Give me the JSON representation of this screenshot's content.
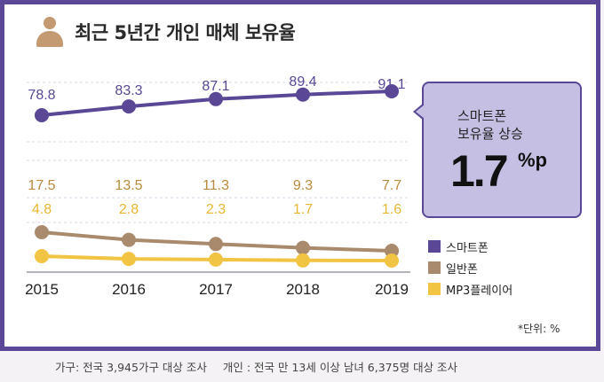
{
  "title": "최근 5년간 개인 매체 보유율",
  "callout": {
    "line1": "스마트폰",
    "line2": "보유율 상승",
    "value": "1.7",
    "unit": "%p"
  },
  "unit_note": "*단위: %",
  "footer": {
    "household": "가구: 전국 3,945가구 대상 조사",
    "individual": "개인 : 전국 만 13세 이상 남녀 6,375명 대상 조사"
  },
  "colors": {
    "smartphone": "#5a4896",
    "feature_phone": "#a98a6c",
    "mp3": "#f2c443",
    "frame": "#5a4896",
    "callout_bg": "#c5bfe3"
  },
  "chart_data": {
    "type": "line",
    "title": "최근 5년간 개인 매체 보유율",
    "x": [
      "2015",
      "2016",
      "2017",
      "2018",
      "2019"
    ],
    "unit": "%",
    "series": [
      {
        "name": "스마트폰",
        "values": [
          78.8,
          83.3,
          87.1,
          89.4,
          91.1
        ],
        "labels": [
          "78.8",
          "83.3",
          "87.1",
          "89.4",
          "91.1"
        ],
        "color": "#5a4896"
      },
      {
        "name": "일반폰",
        "values": [
          17.5,
          13.5,
          11.3,
          9.3,
          7.7
        ],
        "labels": [
          "17.5",
          "13.5",
          "11.3",
          "9.3",
          "7.7"
        ],
        "color": "#a98a6c"
      },
      {
        "name": "MP3플레이어",
        "values": [
          4.8,
          2.8,
          2.3,
          1.7,
          1.6
        ],
        "labels": [
          "4.8",
          "2.8",
          "2.3",
          "1.7",
          "1.6"
        ],
        "color": "#f2c443"
      }
    ],
    "legend": "right",
    "grid": true
  }
}
